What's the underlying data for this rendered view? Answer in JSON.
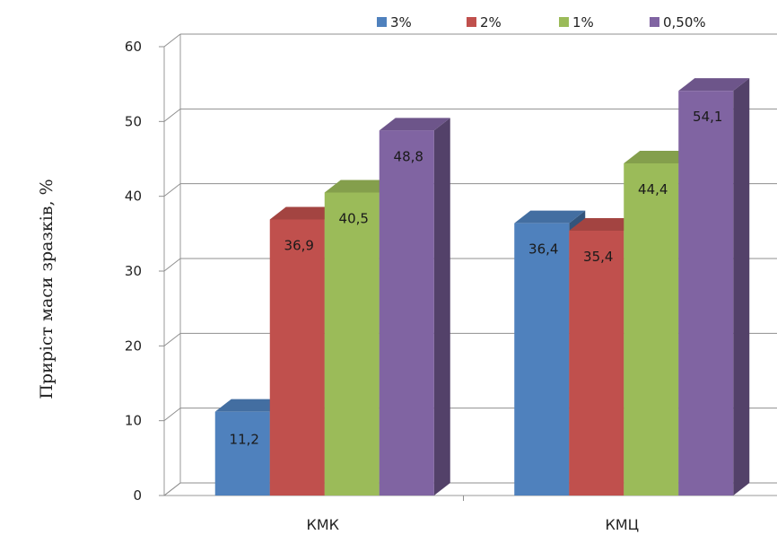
{
  "chart_data": {
    "type": "bar",
    "categories": [
      "КМК",
      "КМЦ"
    ],
    "series": [
      {
        "name": "3%",
        "values": [
          11.2,
          36.4
        ],
        "labels": [
          "11,2",
          "36,4"
        ],
        "color": "#4f81bd"
      },
      {
        "name": "2%",
        "values": [
          36.9,
          35.4
        ],
        "labels": [
          "36,9",
          "35,4"
        ],
        "color": "#c0504d"
      },
      {
        "name": "1%",
        "values": [
          40.5,
          44.4
        ],
        "labels": [
          "40,5",
          "44,4"
        ],
        "color": "#9bbb59"
      },
      {
        "name": "0,50%",
        "values": [
          48.8,
          54.1
        ],
        "labels": [
          "48,8",
          "54,1"
        ],
        "color": "#8064a2"
      }
    ],
    "ylabel": "Приріст маси зразків, %",
    "xlabel": "",
    "ylim": [
      0,
      60
    ],
    "yticks": [
      "0",
      "10",
      "20",
      "30",
      "40",
      "50",
      "60"
    ],
    "grid": true,
    "legend": "top",
    "style": "3d-column"
  }
}
